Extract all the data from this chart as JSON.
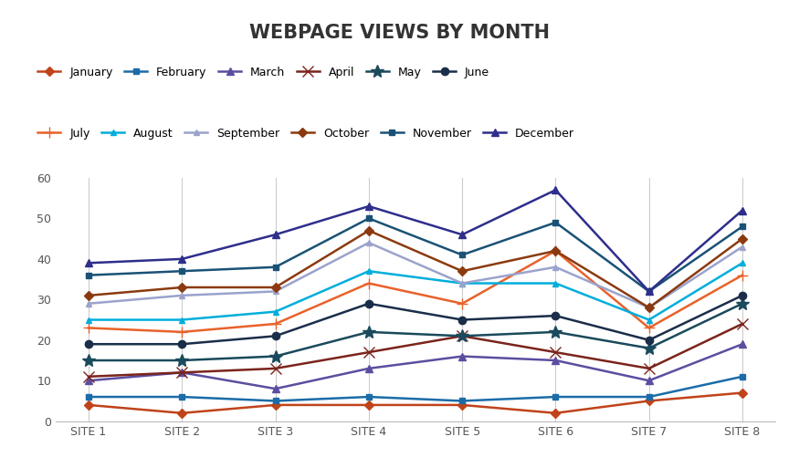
{
  "title": "WEBPAGE VIEWS BY MONTH",
  "sites": [
    "SITE 1",
    "SITE 2",
    "SITE 3",
    "SITE 4",
    "SITE 5",
    "SITE 6",
    "SITE 7",
    "SITE 8"
  ],
  "series": [
    {
      "name": "January",
      "color": "#C0431A",
      "marker": "D",
      "markersize": 5,
      "values": [
        4,
        2,
        4,
        4,
        4,
        2,
        5,
        7
      ]
    },
    {
      "name": "February",
      "color": "#1B6CA8",
      "marker": "s",
      "markersize": 5,
      "values": [
        6,
        6,
        5,
        6,
        5,
        6,
        6,
        11
      ]
    },
    {
      "name": "March",
      "color": "#5B4EA0",
      "marker": "^",
      "markersize": 6,
      "values": [
        10,
        12,
        8,
        13,
        16,
        15,
        10,
        19
      ]
    },
    {
      "name": "April",
      "color": "#7B241C",
      "marker": "x",
      "markersize": 8,
      "values": [
        11,
        12,
        13,
        17,
        21,
        17,
        13,
        24
      ]
    },
    {
      "name": "May",
      "color": "#1A4A5C",
      "marker": "*",
      "markersize": 10,
      "values": [
        15,
        15,
        16,
        22,
        21,
        22,
        18,
        29
      ]
    },
    {
      "name": "June",
      "color": "#1A2E4A",
      "marker": "o",
      "markersize": 6,
      "values": [
        19,
        19,
        21,
        29,
        25,
        26,
        20,
        31
      ]
    },
    {
      "name": "July",
      "color": "#E8622A",
      "marker": "+",
      "markersize": 9,
      "values": [
        23,
        22,
        24,
        34,
        29,
        42,
        23,
        36
      ]
    },
    {
      "name": "August",
      "color": "#00AEDB",
      "marker": "^",
      "markersize": 5,
      "values": [
        25,
        25,
        27,
        37,
        34,
        34,
        25,
        39
      ]
    },
    {
      "name": "September",
      "color": "#9BA3CC",
      "marker": "^",
      "markersize": 5,
      "values": [
        29,
        31,
        32,
        44,
        34,
        38,
        28,
        43
      ]
    },
    {
      "name": "October",
      "color": "#8B3A0F",
      "marker": "D",
      "markersize": 5,
      "values": [
        31,
        33,
        33,
        47,
        37,
        42,
        28,
        45
      ]
    },
    {
      "name": "November",
      "color": "#1A5276",
      "marker": "s",
      "markersize": 5,
      "values": [
        36,
        37,
        38,
        50,
        41,
        49,
        32,
        48
      ]
    },
    {
      "name": "December",
      "color": "#2E2E8C",
      "marker": "^",
      "markersize": 6,
      "values": [
        39,
        40,
        46,
        53,
        46,
        57,
        32,
        52
      ]
    }
  ],
  "ylim": [
    0,
    60
  ],
  "yticks": [
    0,
    10,
    20,
    30,
    40,
    50,
    60
  ],
  "background_color": "#FFFFFF",
  "grid_color": "#CCCCCC",
  "title_fontsize": 15,
  "title_color": "#333333",
  "legend_row1": [
    "January",
    "February",
    "March",
    "April",
    "May",
    "June"
  ],
  "legend_row2": [
    "July",
    "August",
    "September",
    "October",
    "November",
    "December"
  ]
}
